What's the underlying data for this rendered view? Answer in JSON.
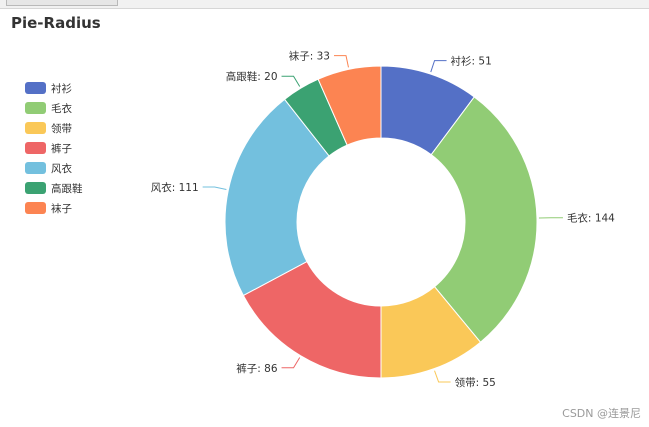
{
  "chart_data": {
    "type": "pie",
    "title": "Pie-Radius",
    "legend_position": "left",
    "slices": [
      {
        "label": "衬衫",
        "value": 51,
        "color": "#5470c6"
      },
      {
        "label": "毛衣",
        "value": 144,
        "color": "#91cc75"
      },
      {
        "label": "领带",
        "value": 55,
        "color": "#fac858"
      },
      {
        "label": "裤子",
        "value": 86,
        "color": "#ee6666"
      },
      {
        "label": "风衣",
        "value": 111,
        "color": "#73c0de"
      },
      {
        "label": "高跟鞋",
        "value": 20,
        "color": "#3ba272"
      },
      {
        "label": "袜子",
        "value": 33,
        "color": "#fc8452"
      }
    ]
  },
  "watermark": "CSDN @连景尼"
}
